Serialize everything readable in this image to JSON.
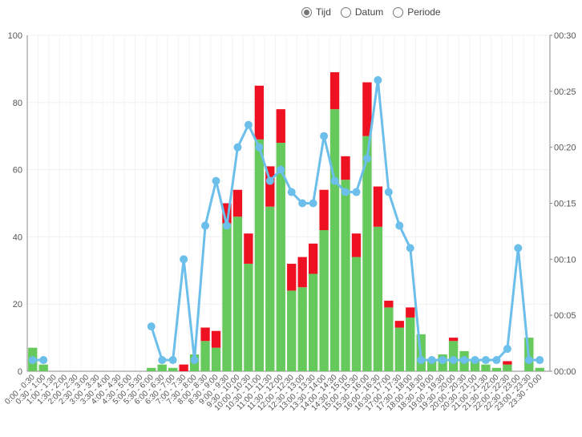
{
  "radio_options": [
    {
      "label": "Tijd",
      "selected": true
    },
    {
      "label": "Datum",
      "selected": false
    },
    {
      "label": "Periode",
      "selected": false
    }
  ],
  "chart_data": {
    "type": "bar",
    "categories": [
      "0:00 - 0:30",
      "0:30 - 1:00",
      "1:00 - 1:30",
      "1:30 - 2:00",
      "2:00 - 2:30",
      "2:30 - 3:00",
      "3:00 - 3:30",
      "3:30 - 4:00",
      "4:00 - 4:30",
      "4:30 - 5:00",
      "5:00 - 5:30",
      "5:30 - 6:00",
      "6:00 - 6:30",
      "6:30 - 7:00",
      "7:00 - 7:30",
      "7:30 - 8:00",
      "8:00 - 8:30",
      "8:30 - 9:00",
      "9:00 - 9:30",
      "9:30 - 10:00",
      "10:00 - 10:30",
      "10:30 - 11:00",
      "11:00 - 11:30",
      "11:30 - 12:00",
      "12:00 - 12:30",
      "12:30 - 13:00",
      "13:00 - 13:30",
      "13:30 - 14:00",
      "14:00 - 14:30",
      "14:30 - 15:00",
      "15:00 - 15:30",
      "15:30 - 16:00",
      "16:00 - 16:30",
      "16:30 - 17:00",
      "17:00 - 17:30",
      "17:30 - 18:00",
      "18:00 - 18:30",
      "18:30 - 19:00",
      "19:00 - 19:30",
      "19:30 - 20:00",
      "20:00 - 20:30",
      "20:30 - 21:00",
      "21:00 - 21:30",
      "21:30 - 22:00",
      "22:00 - 22:30",
      "22:30 - 23:00",
      "23:00 - 23:30",
      "23:30 - 0:00"
    ],
    "series": [
      {
        "color": "#66c95c",
        "values": [
          7,
          2,
          0,
          0,
          0,
          0,
          0,
          0,
          0,
          0,
          0,
          1,
          2,
          1,
          0,
          5,
          9,
          7,
          44,
          46,
          32,
          69,
          49,
          68,
          24,
          25,
          29,
          42,
          78,
          57,
          34,
          70,
          43,
          19,
          13,
          16,
          11,
          3,
          5,
          9,
          6,
          3,
          2,
          1,
          2,
          0,
          10,
          1
        ]
      },
      {
        "color": "#ee1122",
        "values": [
          0,
          0,
          0,
          0,
          0,
          0,
          0,
          0,
          0,
          0,
          0,
          0,
          0,
          0,
          2,
          0,
          4,
          5,
          6,
          8,
          9,
          16,
          12,
          10,
          8,
          9,
          9,
          12,
          11,
          7,
          7,
          16,
          12,
          2,
          2,
          3,
          0,
          0,
          0,
          1,
          0,
          0,
          0,
          0,
          1,
          0,
          0,
          0
        ]
      },
      {
        "type": "line",
        "axis": "y2",
        "color": "#6bbfea",
        "values": [
          1,
          1,
          null,
          null,
          null,
          null,
          null,
          null,
          null,
          null,
          null,
          4,
          1,
          1,
          10,
          1,
          13,
          17,
          13,
          20,
          22,
          20,
          17,
          18,
          16,
          15,
          15,
          21,
          17,
          16,
          16,
          19,
          26,
          16,
          13,
          11,
          1,
          1,
          1,
          1,
          1,
          1,
          1,
          1,
          2,
          11,
          1,
          1
        ]
      }
    ],
    "ylim": [
      0,
      100
    ],
    "yticks": [
      0,
      20,
      40,
      60,
      80,
      100
    ],
    "y2lim": [
      0,
      30
    ],
    "y2ticks": [
      {
        "value": 0,
        "label": "00:00"
      },
      {
        "value": 5,
        "label": "00:05"
      },
      {
        "value": 10,
        "label": "00:10"
      },
      {
        "value": 15,
        "label": "00:15"
      },
      {
        "value": 20,
        "label": "00:20"
      },
      {
        "value": 25,
        "label": "00:25"
      },
      {
        "value": 30,
        "label": "00:30"
      }
    ],
    "grid": true
  }
}
